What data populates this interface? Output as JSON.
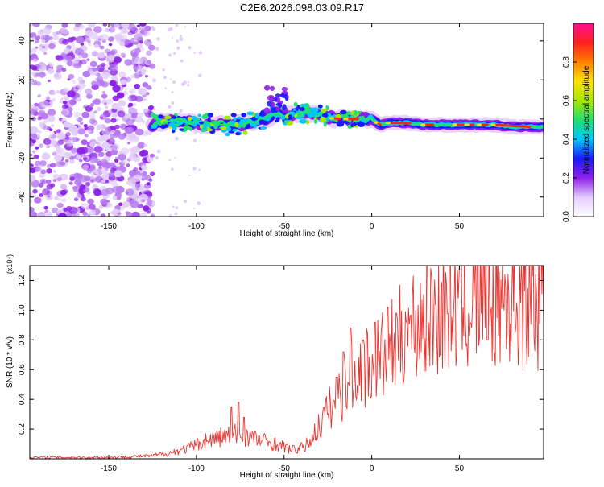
{
  "title": "C2E6.2026.098.03.09.R17",
  "colors": {
    "line": "#e8332f",
    "colormap": [
      "#ffffff",
      "#e5ccff",
      "#8d20e8",
      "#1a1aff",
      "#00c8ff",
      "#20e070",
      "#a8e800",
      "#ffe000",
      "#ff8000",
      "#ff2020",
      "#ff1090"
    ]
  },
  "chart_data": [
    {
      "type": "heatmap",
      "title": "C2E6.2026.098.03.09.R17",
      "xlabel": "Height of straight line (km)",
      "ylabel": "Frequency (Hz)",
      "xlim": [
        -195,
        98
      ],
      "ylim": [
        -50,
        49
      ],
      "xticks": [
        -150,
        -100,
        -50,
        0,
        50
      ],
      "yticks": [
        -40,
        -20,
        0,
        20,
        40
      ],
      "colorbar": {
        "label": "Normalized spectral amplitude",
        "range": [
          0,
          1
        ],
        "ticks": [
          "0.0",
          "0.2",
          "0.4",
          "0.6",
          "0.8"
        ],
        "tick_values": [
          0,
          0.2,
          0.4,
          0.6,
          0.8
        ]
      },
      "ridge": {
        "x": [
          -125,
          -110,
          -100,
          -90,
          -80,
          -70,
          -60,
          -55,
          -50,
          -40,
          -30,
          -20,
          -10,
          0,
          5,
          10,
          20,
          30,
          40,
          50,
          60,
          70,
          80,
          90,
          98
        ],
        "freq": [
          -3,
          -1,
          -2,
          -3,
          -3,
          -2,
          0,
          3,
          2,
          3,
          2,
          0,
          0,
          0,
          -3,
          -2,
          -2,
          -3,
          -3,
          -3,
          -3,
          -3,
          -4,
          -4,
          -4
        ]
      },
      "noise_region_km": [
        -195,
        -125
      ]
    },
    {
      "type": "line",
      "xlabel": "Height of straight line (km)",
      "ylabel": "SNR (10 * v/v)",
      "y_multiplier": "(x10⁴)",
      "xlim": [
        -195,
        98
      ],
      "ylim": [
        0,
        1.3
      ],
      "xticks": [
        -150,
        -100,
        -50,
        0,
        50
      ],
      "yticks": [
        "0.2",
        "0.4",
        "0.6",
        "0.8",
        "1.0",
        "1.2"
      ],
      "ytick_values": [
        0.2,
        0.4,
        0.6,
        0.8,
        1.0,
        1.2
      ],
      "envelope": {
        "x": [
          -195,
          -150,
          -125,
          -115,
          -105,
          -95,
          -85,
          -75,
          -65,
          -55,
          -45,
          -38,
          -32,
          -25,
          -15,
          -8,
          0,
          10,
          20,
          30,
          40,
          50,
          60,
          70,
          80,
          90,
          98
        ],
        "y": [
          0.01,
          0.01,
          0.02,
          0.04,
          0.07,
          0.12,
          0.15,
          0.17,
          0.13,
          0.1,
          0.06,
          0.08,
          0.18,
          0.32,
          0.48,
          0.58,
          0.64,
          0.72,
          0.86,
          0.96,
          1.02,
          1.05,
          1.07,
          1.08,
          1.08,
          1.09,
          1.08
        ]
      },
      "spikes": [
        {
          "x": -80,
          "y": 0.35
        },
        {
          "x": -76,
          "y": 0.38
        },
        {
          "x": -73,
          "y": 0.28
        },
        {
          "x": -20,
          "y": 0.55
        },
        {
          "x": -16,
          "y": 0.72
        },
        {
          "x": -12,
          "y": 0.88
        },
        {
          "x": -5,
          "y": 0.8
        },
        {
          "x": 2,
          "y": 0.92
        },
        {
          "x": 9,
          "y": 1.02
        },
        {
          "x": 14,
          "y": 0.98
        },
        {
          "x": 20,
          "y": 0.92
        },
        {
          "x": 64,
          "y": 1.3
        },
        {
          "x": 66,
          "y": 0.8
        }
      ],
      "series_name": "SNR"
    }
  ]
}
